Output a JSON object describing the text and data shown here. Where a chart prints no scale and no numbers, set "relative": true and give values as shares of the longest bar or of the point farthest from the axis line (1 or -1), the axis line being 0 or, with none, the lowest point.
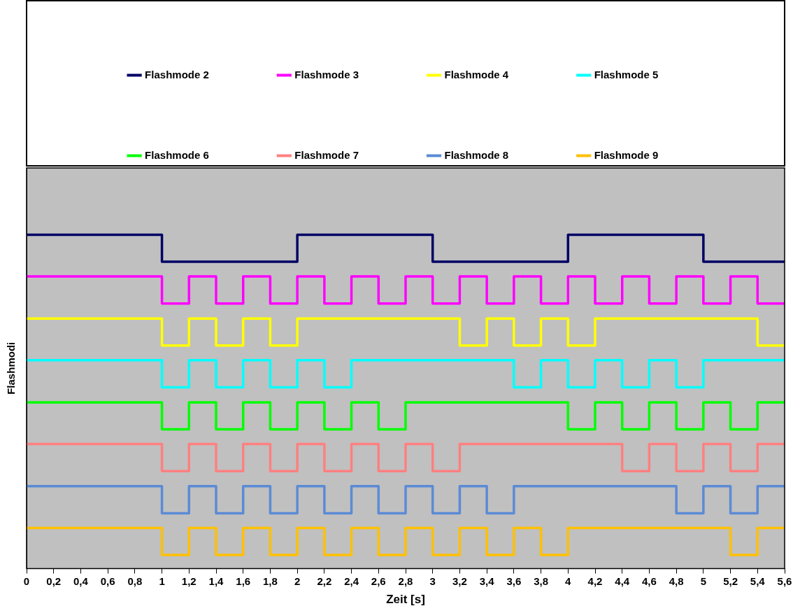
{
  "chart_data": {
    "type": "step",
    "relative": true,
    "xlabel": "Zeit [s]",
    "ylabel": "Flashmodi",
    "legend": "top",
    "grid": false,
    "marker": "none",
    "line_style": "solid",
    "xlim": [
      0,
      5.6
    ],
    "xticks": [
      0,
      {
        "value": 0.2,
        "label": "0,2"
      },
      {
        "value": 0.4,
        "label": "0,4"
      },
      {
        "value": 0.6,
        "label": "0,6"
      },
      {
        "value": 0.8,
        "label": "0,8"
      },
      1,
      {
        "value": 1.2,
        "label": "1,2"
      },
      {
        "value": 1.4,
        "label": "1,4"
      },
      {
        "value": 1.6,
        "label": "1,6"
      },
      {
        "value": 1.8,
        "label": "1,8"
      },
      2,
      {
        "value": 2.2,
        "label": "2,2"
      },
      {
        "value": 2.4,
        "label": "2,4"
      },
      {
        "value": 2.6,
        "label": "2,6"
      },
      {
        "value": 2.8,
        "label": "2,8"
      },
      3,
      {
        "value": 3.2,
        "label": "3,2"
      },
      {
        "value": 3.4,
        "label": "3,4"
      },
      {
        "value": 3.6,
        "label": "3,6"
      },
      {
        "value": 3.8,
        "label": "3,8"
      },
      4,
      {
        "value": 4.2,
        "label": "4,2"
      },
      {
        "value": 4.4,
        "label": "4,4"
      },
      {
        "value": 4.6,
        "label": "4,6"
      },
      {
        "value": 4.8,
        "label": "4,8"
      },
      5,
      {
        "value": 5.2,
        "label": "5,2"
      },
      {
        "value": 5.4,
        "label": "5,4"
      },
      {
        "value": 5.6,
        "label": "5,6"
      }
    ],
    "series": [
      {
        "name": "Flashmode 2",
        "color": "#000066",
        "x": [
          0,
          1,
          2,
          3,
          4,
          5,
          5.6
        ],
        "values": [
          1,
          0.919,
          1,
          0.919,
          1,
          0.919,
          0.919
        ]
      },
      {
        "name": "Flashmode 3",
        "color": "#ff00ff",
        "x": [
          0,
          1,
          1.2,
          1.4,
          1.6,
          1.8,
          2,
          2.2,
          2.4,
          2.6,
          2.8,
          3,
          3.2,
          3.4,
          3.6,
          3.8,
          4,
          4.2,
          4.4,
          4.6,
          4.8,
          5,
          5.2,
          5.4,
          5.6
        ],
        "values": [
          0.875,
          0.794,
          0.875,
          0.794,
          0.875,
          0.794,
          0.875,
          0.794,
          0.875,
          0.794,
          0.875,
          0.794,
          0.875,
          0.794,
          0.875,
          0.794,
          0.875,
          0.794,
          0.875,
          0.794,
          0.875,
          0.794,
          0.875,
          0.794,
          0.794
        ]
      },
      {
        "name": "Flashmode 4",
        "color": "#ffff00",
        "x": [
          0,
          1,
          1.2,
          1.4,
          1.6,
          1.8,
          2,
          3.2,
          3.4,
          3.6,
          3.8,
          4,
          4.2,
          5.4,
          5.6
        ],
        "values": [
          0.749,
          0.668,
          0.749,
          0.668,
          0.749,
          0.668,
          0.749,
          0.668,
          0.749,
          0.668,
          0.749,
          0.668,
          0.749,
          0.668,
          0.668
        ]
      },
      {
        "name": "Flashmode 5",
        "color": "#00ffff",
        "x": [
          0,
          1,
          1.2,
          1.4,
          1.6,
          1.8,
          2,
          2.2,
          2.4,
          3.6,
          3.8,
          4,
          4.2,
          4.4,
          4.6,
          4.8,
          5,
          5.6
        ],
        "values": [
          0.624,
          0.543,
          0.624,
          0.543,
          0.624,
          0.543,
          0.624,
          0.543,
          0.624,
          0.543,
          0.624,
          0.543,
          0.624,
          0.543,
          0.624,
          0.543,
          0.624,
          0.624
        ]
      },
      {
        "name": "Flashmode 6",
        "color": "#00ff00",
        "x": [
          0,
          1,
          1.2,
          1.4,
          1.6,
          1.8,
          2,
          2.2,
          2.4,
          2.6,
          2.8,
          4,
          4.2,
          4.4,
          4.6,
          4.8,
          5,
          5.2,
          5.4,
          5.6
        ],
        "values": [
          0.498,
          0.417,
          0.498,
          0.417,
          0.498,
          0.417,
          0.498,
          0.417,
          0.498,
          0.417,
          0.498,
          0.417,
          0.498,
          0.417,
          0.498,
          0.417,
          0.498,
          0.417,
          0.498,
          0.498
        ]
      },
      {
        "name": "Flashmode 7",
        "color": "#ff8080",
        "x": [
          0,
          1,
          1.2,
          1.4,
          1.6,
          1.8,
          2,
          2.2,
          2.4,
          2.6,
          2.8,
          3,
          3.2,
          4.4,
          4.6,
          4.8,
          5,
          5.2,
          5.4,
          5.6
        ],
        "values": [
          0.373,
          0.292,
          0.373,
          0.292,
          0.373,
          0.292,
          0.373,
          0.292,
          0.373,
          0.292,
          0.373,
          0.292,
          0.373,
          0.292,
          0.373,
          0.292,
          0.373,
          0.292,
          0.373,
          0.373
        ]
      },
      {
        "name": "Flashmode 8",
        "color": "#5b8bd6",
        "x": [
          0,
          1,
          1.2,
          1.4,
          1.6,
          1.8,
          2,
          2.2,
          2.4,
          2.6,
          2.8,
          3,
          3.2,
          3.4,
          3.6,
          4.8,
          5,
          5.2,
          5.4,
          5.6
        ],
        "values": [
          0.247,
          0.166,
          0.247,
          0.166,
          0.247,
          0.166,
          0.247,
          0.166,
          0.247,
          0.166,
          0.247,
          0.166,
          0.247,
          0.166,
          0.247,
          0.166,
          0.247,
          0.166,
          0.247,
          0.247
        ]
      },
      {
        "name": "Flashmode 9",
        "color": "#ffc000",
        "x": [
          0,
          1,
          1.2,
          1.4,
          1.6,
          1.8,
          2,
          2.2,
          2.4,
          2.6,
          2.8,
          3,
          3.2,
          3.4,
          3.6,
          3.8,
          4,
          5.2,
          5.4,
          5.6
        ],
        "values": [
          0.122,
          0.041,
          0.122,
          0.041,
          0.122,
          0.041,
          0.122,
          0.041,
          0.122,
          0.041,
          0.122,
          0.041,
          0.122,
          0.041,
          0.122,
          0.041,
          0.122,
          0.041,
          0.122,
          0.122
        ]
      }
    ]
  }
}
